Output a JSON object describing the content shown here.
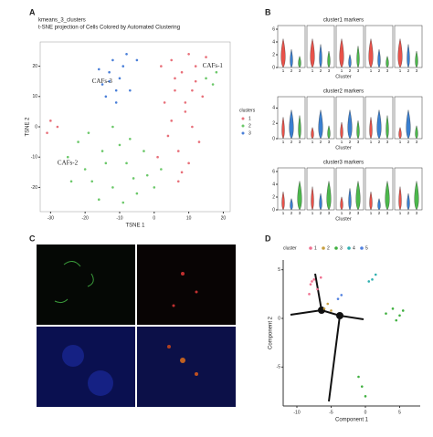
{
  "panels": {
    "a": "A",
    "b": "B",
    "c": "C",
    "d": "D"
  },
  "chart_data": [
    {
      "type": "scatter",
      "title": "kmeans_3_clusters",
      "subtitle": "t-SNE projection of Cells Colored by Automated Clustering",
      "x_label": "TSNE 1",
      "y_label": "TSNE 2",
      "xlim": [
        -33,
        22
      ],
      "ylim": [
        -28,
        28
      ],
      "xticks": [
        -30,
        -20,
        -10,
        0,
        10,
        20
      ],
      "yticks": [
        -20,
        -10,
        0,
        10,
        20
      ],
      "legend_title": "clusters",
      "legend": "right",
      "series": [
        {
          "name": "1",
          "color": "#e8707a",
          "x": [
            2,
            5,
            8,
            10,
            12,
            14,
            6,
            9,
            11,
            4,
            7,
            13,
            3,
            10,
            8,
            5,
            12,
            15,
            6,
            9,
            -30,
            -28,
            -31,
            1,
            11,
            7
          ],
          "values": [
            20,
            22,
            18,
            24,
            15,
            10,
            12,
            5,
            0,
            -3,
            -8,
            -5,
            8,
            -12,
            -15,
            2,
            20,
            23,
            16,
            8,
            2,
            0,
            -2,
            -10,
            12,
            -18
          ]
        },
        {
          "name": "2",
          "color": "#6cc86a",
          "x": [
            -25,
            -20,
            -18,
            -15,
            -12,
            -8,
            -5,
            -2,
            -22,
            -16,
            -10,
            -6,
            -14,
            -3,
            0,
            -19,
            -9,
            -12,
            15,
            17,
            18,
            -24,
            -7,
            2
          ],
          "values": [
            -10,
            -14,
            -18,
            -8,
            -20,
            -12,
            -22,
            -16,
            -5,
            -24,
            -6,
            -17,
            -12,
            -8,
            -20,
            -2,
            -25,
            0,
            16,
            14,
            18,
            -18,
            -4,
            -14
          ]
        },
        {
          "name": "3",
          "color": "#4a7fd8",
          "x": [
            -15,
            -13,
            -11,
            -9,
            -12,
            -14,
            -10,
            -8,
            -16,
            -7,
            -11,
            -5,
            -13
          ],
          "values": [
            14,
            18,
            12,
            20,
            22,
            10,
            16,
            24,
            19,
            12,
            8,
            22,
            15
          ]
        }
      ],
      "annotations": [
        {
          "text": "CAFs-1",
          "color": "#e8707a",
          "x": 14,
          "y": 20
        },
        {
          "text": "CAFs-3",
          "color": "#4a7fd8",
          "x": -18,
          "y": 15
        },
        {
          "text": "CAFs-2",
          "color": "#6cc86a",
          "x": -28,
          "y": -12
        }
      ]
    },
    {
      "type": "violin",
      "title": "cluster1 markers",
      "x_label": "Cluster",
      "categories": [
        "1",
        "2",
        "3"
      ],
      "colors": [
        "#e8524a",
        "#3a7fd0",
        "#4cb84c"
      ],
      "ylim": [
        0,
        6
      ],
      "yticks": [
        0,
        2,
        4,
        6
      ]
    },
    {
      "type": "violin",
      "title": "cluster2 markers",
      "x_label": "Cluster",
      "categories": [
        "1",
        "2",
        "3"
      ],
      "colors": [
        "#e8524a",
        "#3a7fd0",
        "#4cb84c"
      ],
      "ylim": [
        0,
        5
      ],
      "yticks": [
        0,
        2,
        4
      ]
    },
    {
      "type": "violin",
      "title": "cluster3 markers",
      "x_label": "Cluster",
      "categories": [
        "1",
        "2",
        "3"
      ],
      "colors": [
        "#e8524a",
        "#3a7fd0",
        "#4cb84c"
      ],
      "ylim": [
        0,
        6
      ],
      "yticks": [
        0,
        2,
        4,
        6
      ]
    },
    {
      "type": "scatter",
      "x_label": "Component 1",
      "y_label": "Component 2",
      "legend_title": "cluster",
      "legend": "top",
      "xlim": [
        -12,
        8
      ],
      "ylim": [
        -9,
        6
      ],
      "xticks": [
        -10,
        -5,
        0,
        5
      ],
      "yticks": [
        -5,
        0,
        5
      ],
      "series": [
        {
          "name": "1",
          "color": "#f07090",
          "x": [
            -8,
            -7.5,
            -7,
            -6.5,
            -8.2,
            -7.8
          ],
          "values": [
            3.5,
            4,
            3,
            4.2,
            2.5,
            3.8
          ]
        },
        {
          "name": "2",
          "color": "#c8a040",
          "x": [
            -6,
            -5.5,
            -5
          ],
          "values": [
            1,
            1.5,
            0.8
          ]
        },
        {
          "name": "3",
          "color": "#40b040",
          "x": [
            3,
            4,
            5,
            5.5,
            4.5,
            -1,
            -0.5,
            0
          ],
          "values": [
            0.5,
            1,
            0.3,
            0.8,
            -0.2,
            -6,
            -7,
            -8
          ]
        },
        {
          "name": "4",
          "color": "#30b0b0",
          "x": [
            1,
            1.5,
            0.5
          ],
          "values": [
            4,
            4.5,
            3.8
          ]
        },
        {
          "name": "5",
          "color": "#5080e0",
          "x": [
            -4,
            -3.5
          ],
          "values": [
            2,
            2.4
          ]
        }
      ]
    }
  ]
}
